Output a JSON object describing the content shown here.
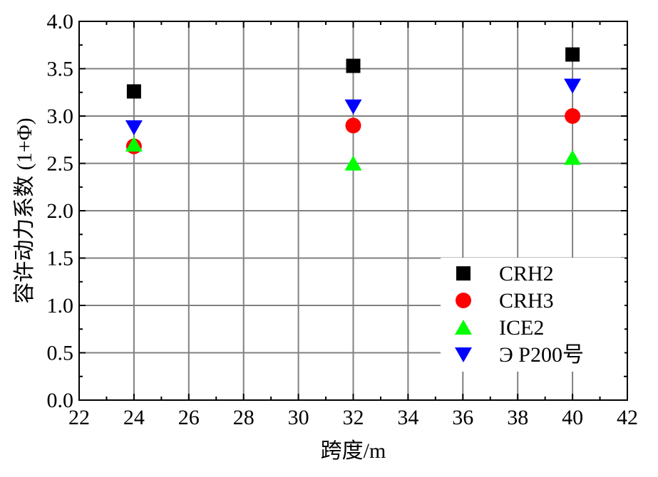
{
  "chart_data": {
    "type": "scatter",
    "xlabel": "跨度/m",
    "ylabel": "容许动力系数 (1+Φ)",
    "xlim": [
      22,
      42
    ],
    "ylim": [
      0.0,
      4.0
    ],
    "x_ticks": [
      "22",
      "24",
      "26",
      "28",
      "30",
      "32",
      "34",
      "36",
      "38",
      "40",
      "42"
    ],
    "y_ticks": [
      "0.0",
      "0.5",
      "1.0",
      "1.5",
      "2.0",
      "2.5",
      "3.0",
      "3.5",
      "4.0"
    ],
    "grid": true,
    "legend_position": "bottom-right",
    "series": [
      {
        "name": "CRH2",
        "marker": "square",
        "color": "#000000",
        "x": [
          24,
          32,
          40
        ],
        "y": [
          3.26,
          3.53,
          3.65
        ]
      },
      {
        "name": "CRH3",
        "marker": "circle",
        "color": "#ff0000",
        "x": [
          24,
          32,
          40
        ],
        "y": [
          2.68,
          2.9,
          3.0
        ]
      },
      {
        "name": "ICE2",
        "marker": "triangle-up",
        "color": "#00ff00",
        "x": [
          24,
          32,
          40
        ],
        "y": [
          2.7,
          2.5,
          2.56
        ]
      },
      {
        "name": "Э P200号",
        "marker": "triangle-down",
        "color": "#0000ff",
        "x": [
          24,
          32,
          40
        ],
        "y": [
          2.88,
          3.1,
          3.32
        ]
      }
    ]
  }
}
